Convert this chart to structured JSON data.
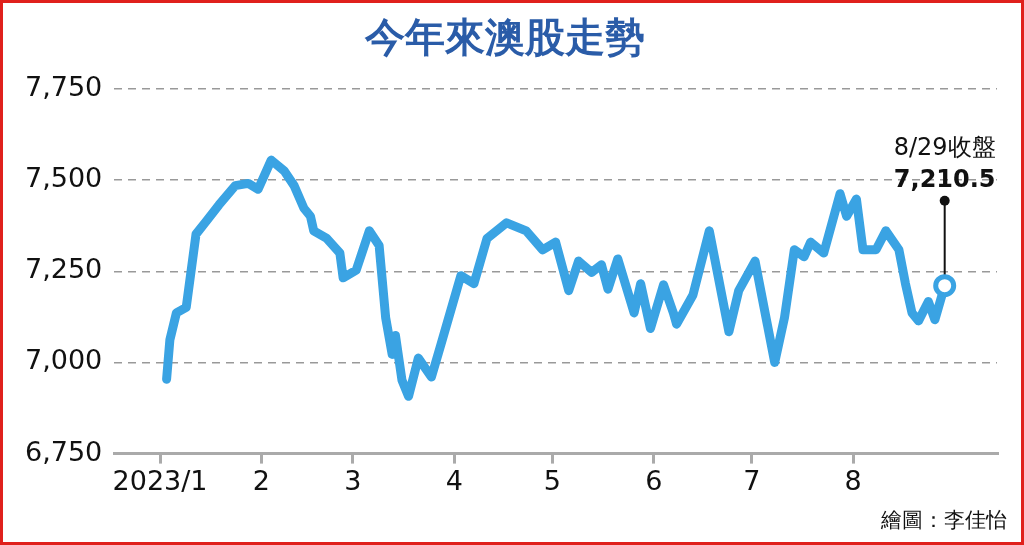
{
  "chart_data": {
    "type": "line",
    "title": "今年來澳股走勢",
    "x": [
      "2023-01-03",
      "2023-01-04",
      "2023-01-06",
      "2023-01-09",
      "2023-01-12",
      "2023-01-15",
      "2023-01-19",
      "2023-01-24",
      "2023-01-28",
      "2023-01-31",
      "2023-02-04",
      "2023-02-08",
      "2023-02-11",
      "2023-02-14",
      "2023-02-16",
      "2023-02-17",
      "2023-02-21",
      "2023-02-25",
      "2023-02-26",
      "2023-03-02",
      "2023-03-06",
      "2023-03-09",
      "2023-03-11",
      "2023-03-13",
      "2023-03-14",
      "2023-03-16",
      "2023-03-18",
      "2023-03-21",
      "2023-03-25",
      "2023-03-28",
      "2023-04-03",
      "2023-04-07",
      "2023-04-11",
      "2023-04-17",
      "2023-04-23",
      "2023-04-28",
      "2023-05-02",
      "2023-05-06",
      "2023-05-09",
      "2023-05-13",
      "2023-05-16",
      "2023-05-18",
      "2023-05-21",
      "2023-05-26",
      "2023-05-28",
      "2023-05-31",
      "2023-06-04",
      "2023-06-07",
      "2023-06-08",
      "2023-06-13",
      "2023-06-18",
      "2023-06-24",
      "2023-06-27",
      "2023-07-02",
      "2023-07-08",
      "2023-07-11",
      "2023-07-14",
      "2023-07-17",
      "2023-07-19",
      "2023-07-23",
      "2023-07-28",
      "2023-07-30",
      "2023-08-02",
      "2023-08-04",
      "2023-08-08",
      "2023-08-11",
      "2023-08-15",
      "2023-08-17",
      "2023-08-19",
      "2023-08-21",
      "2023-08-24",
      "2023-08-26",
      "2023-08-29"
    ],
    "series": [
      {
        "color": "#3aa3e3",
        "values": [
          6954,
          7062,
          7136,
          7151,
          7352,
          7386,
          7432,
          7485,
          7491,
          7475,
          7555,
          7525,
          7485,
          7423,
          7401,
          7361,
          7340,
          7300,
          7232,
          7253,
          7361,
          7321,
          7123,
          7022,
          7074,
          6951,
          6907,
          7012,
          6960,
          7052,
          7238,
          7216,
          7340,
          7383,
          7361,
          7309,
          7330,
          7197,
          7278,
          7247,
          7268,
          7201,
          7284,
          7136,
          7216,
          7093,
          7213,
          7136,
          7105,
          7185,
          7361,
          7084,
          7197,
          7278,
          7000,
          7123,
          7309,
          7290,
          7330,
          7300,
          7463,
          7401,
          7448,
          7309,
          7309,
          7361,
          7309,
          7216,
          7136,
          7114,
          7167,
          7117,
          7210.5
        ]
      }
    ],
    "xlim": [
      "2022-12-18",
      "2023-09-14"
    ],
    "xticks": [
      {
        "value": "2023-01-01",
        "label": "2023/1"
      },
      {
        "value": "2023-02-01",
        "label": "2"
      },
      {
        "value": "2023-03-01",
        "label": "3"
      },
      {
        "value": "2023-04-01",
        "label": "4"
      },
      {
        "value": "2023-05-01",
        "label": "5"
      },
      {
        "value": "2023-06-01",
        "label": "6"
      },
      {
        "value": "2023-07-01",
        "label": "7"
      },
      {
        "value": "2023-08-01",
        "label": "8"
      }
    ],
    "ylim": [
      6750,
      7750
    ],
    "yticks": [
      {
        "value": 6750,
        "label": "6,750"
      },
      {
        "value": 7000,
        "label": "7,000"
      },
      {
        "value": 7250,
        "label": "7,250"
      },
      {
        "value": 7500,
        "label": "7,500"
      },
      {
        "value": 7750,
        "label": "7,750"
      }
    ],
    "grid": "y",
    "legend": false,
    "marker": "none",
    "line_style": "solid",
    "annotations": [
      {
        "text": "8/29收盤\n7,210.5",
        "x": "2023-08-29",
        "y": 7210.5
      },
      "繪圖：李佳怡"
    ]
  }
}
